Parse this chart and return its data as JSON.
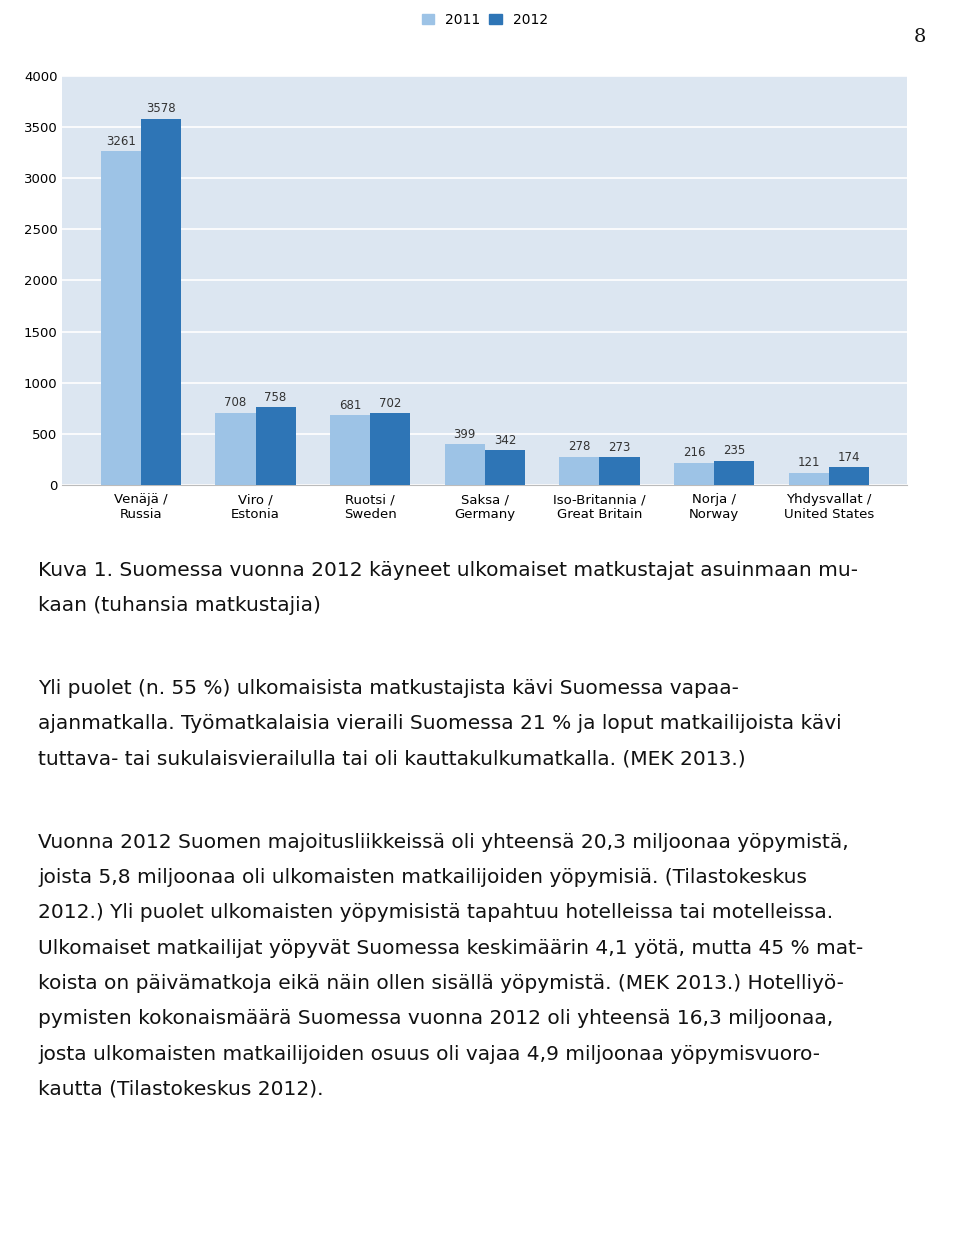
{
  "categories": [
    "Venäjä /\nRussia",
    "Viro /\nEstonia",
    "Ruotsi /\nSweden",
    "Saksa /\nGermany",
    "Iso-Britannia /\nGreat Britain",
    "Norja /\nNorway",
    "Yhdysvallat /\nUnited States"
  ],
  "values_2011": [
    3261,
    708,
    681,
    399,
    278,
    216,
    121
  ],
  "values_2012": [
    3578,
    758,
    702,
    342,
    273,
    235,
    174
  ],
  "color_2011": "#9DC3E6",
  "color_2012": "#2E75B6",
  "legend_labels": [
    "2011",
    "2012"
  ],
  "ylim": [
    0,
    4000
  ],
  "yticks": [
    0,
    500,
    1000,
    1500,
    2000,
    2500,
    3000,
    3500,
    4000
  ],
  "bar_width": 0.35,
  "page_number": "8",
  "caption_line1": "Kuva 1. Suomessa vuonna 2012 käyneet ulkomaiset matkustajat asuinmaan mu-",
  "caption_line2": "kaan (tuhansia matkustajia)",
  "para1_lines": [
    "Yli puolet (n. 55 %) ulkomaisista matkustajista kävi Suomessa vapaa-",
    "ajanmatkalla. Työmatkalaisia vieraili Suomessa 21 % ja loput matkailijoista kävi",
    "tuttava- tai sukulaisvierailulla tai oli kauttakulkumatkalla. (MEK 2013.)"
  ],
  "para2_lines": [
    "Vuonna 2012 Suomen majoitusliikkeissä oli yhteensä 20,3 miljoonaa yöpymistä,",
    "joista 5,8 miljoonaa oli ulkomaisten matkailijoiden yöpymisiä. (Tilastokeskus",
    "2012.) Yli puolet ulkomaisten yöpymisistä tapahtuu hotelleissa tai motelleissa.",
    "Ulkomaiset matkailijat yöpyvät Suomessa keskimäärin 4,1 yötä, mutta 45 % mat-",
    "koista on päivämatkoja eikä näin ollen sisällä yöpymistä. (MEK 2013.) Hotelliyö-",
    "pymisten kokonaismäärä Suomessa vuonna 2012 oli yhteensä 16,3 miljoonaa,",
    "josta ulkomaisten matkailijoiden osuus oli vajaa 4,9 miljoonaa yöpymisvuoro-",
    "kautta (Tilastokeskus 2012)."
  ],
  "chart_bg": "#DCE6F1",
  "grid_color": "#FFFFFF",
  "value_fontsize": 8.5,
  "axis_fontsize": 9.5,
  "legend_fontsize": 10,
  "text_fontsize": 14.5,
  "caption_fontsize": 14.5
}
